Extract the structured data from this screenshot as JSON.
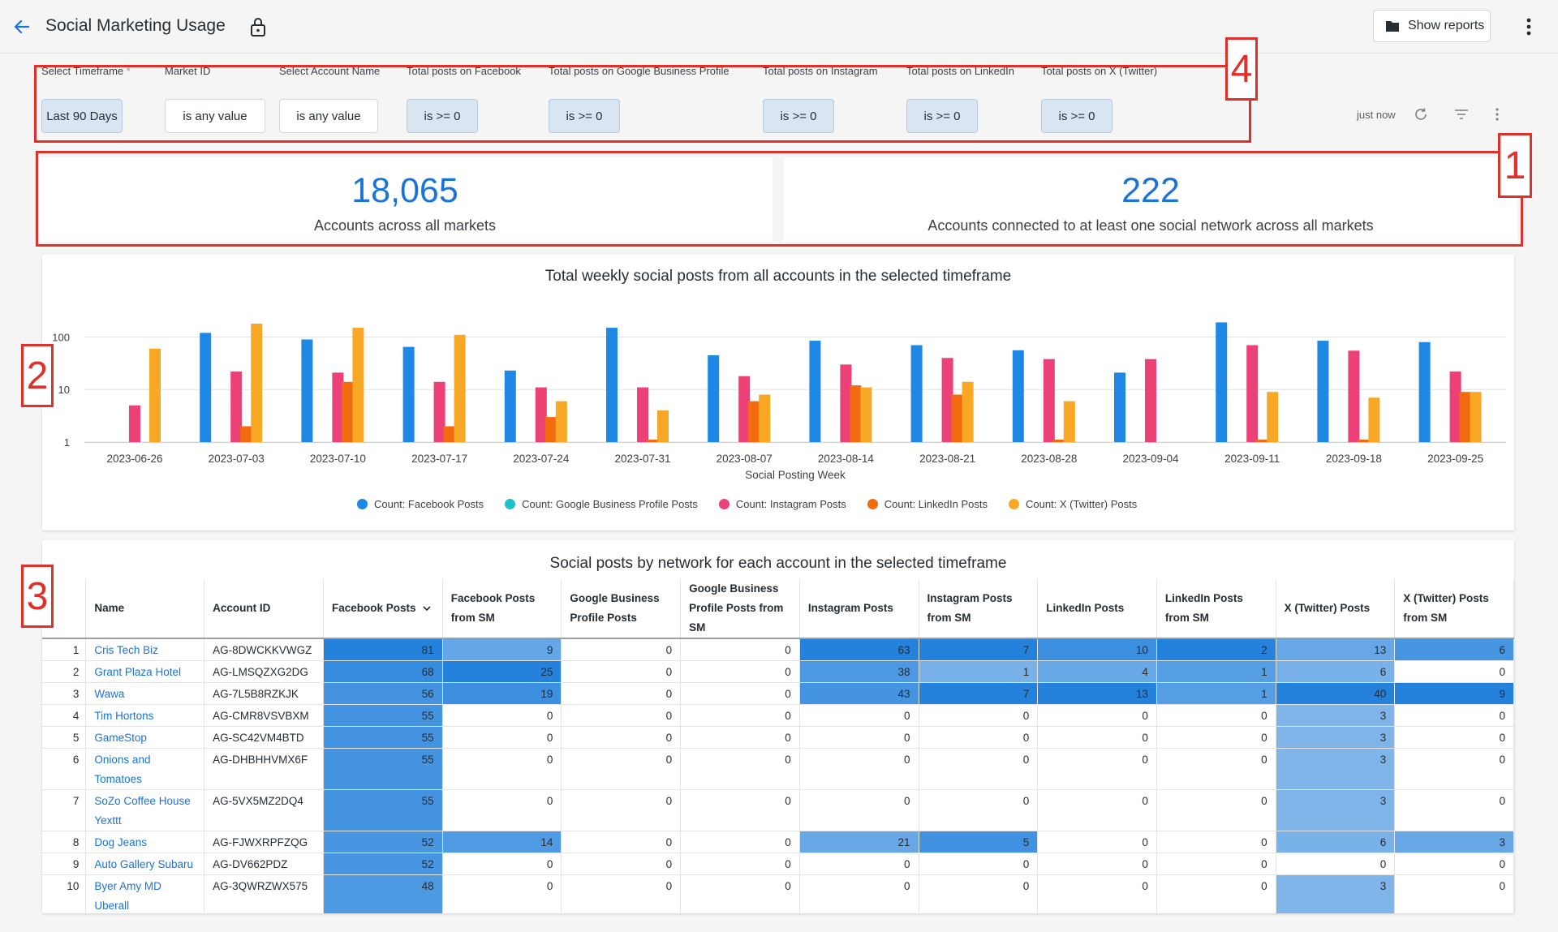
{
  "header": {
    "title": "Social Marketing Usage",
    "show_reports_label": "Show reports"
  },
  "filters": [
    {
      "label": "Select Timeframe",
      "required": "*",
      "value": "Last 90 Days"
    },
    {
      "label": "Market ID",
      "value": "is any value"
    },
    {
      "label": "Select Account Name",
      "value": "is any value"
    },
    {
      "label": "Total posts on Facebook",
      "value": "is >= 0"
    },
    {
      "label": "Total posts on Google Business Profile",
      "value": "is >= 0"
    },
    {
      "label": "Total posts on Instagram",
      "value": "is >= 0"
    },
    {
      "label": "Total posts on LinkedIn",
      "value": "is >= 0"
    },
    {
      "label": "Total posts on X (Twitter)",
      "value": "is >= 0"
    }
  ],
  "toolbar": {
    "refresh_status": "just now"
  },
  "annotations": [
    "1",
    "2",
    "3",
    "4"
  ],
  "kpis": [
    {
      "value": "18,065",
      "label": "Accounts across all markets"
    },
    {
      "value": "222",
      "label": "Accounts connected to at least one social network across all markets"
    }
  ],
  "chart_data": {
    "type": "bar",
    "title": "Total weekly social posts from all accounts in the selected timeframe",
    "xlabel": "Social Posting Week",
    "ylabel": "",
    "yscale": "log",
    "ylim": [
      1,
      200
    ],
    "yticks": [
      "1",
      "10",
      "100"
    ],
    "grid": true,
    "legend_position": "bottom",
    "categories": [
      "2023-06-26",
      "2023-07-03",
      "2023-07-10",
      "2023-07-17",
      "2023-07-24",
      "2023-07-31",
      "2023-08-07",
      "2023-08-14",
      "2023-08-21",
      "2023-08-28",
      "2023-09-04",
      "2023-09-11",
      "2023-09-18",
      "2023-09-25"
    ],
    "series": [
      {
        "name": "Count: Facebook Posts",
        "color": "#1f88e5",
        "values": [
          0,
          120,
          90,
          65,
          23,
          150,
          45,
          85,
          70,
          56,
          21,
          190,
          85,
          80
        ]
      },
      {
        "name": "Count: Google Business Profile Posts",
        "color": "#1fbfcf",
        "values": [
          0,
          0,
          0,
          0,
          0,
          0,
          0,
          0,
          0,
          0,
          0,
          0,
          0,
          0
        ]
      },
      {
        "name": "Count: Instagram Posts",
        "color": "#ec4176",
        "values": [
          5,
          22,
          21,
          14,
          11,
          11,
          18,
          30,
          40,
          38,
          38,
          70,
          55,
          22
        ]
      },
      {
        "name": "Count: LinkedIn Posts",
        "color": "#f26b0f",
        "values": [
          0,
          2,
          14,
          2,
          3,
          1,
          6,
          12,
          8,
          1,
          0,
          1,
          1,
          9
        ]
      },
      {
        "name": "Count: X (Twitter) Posts",
        "color": "#f9a825",
        "values": [
          60,
          180,
          150,
          110,
          6,
          4,
          8,
          11,
          14,
          6,
          0,
          9,
          7,
          9
        ]
      }
    ]
  },
  "table": {
    "title": "Social posts by network for each account in the selected timeframe",
    "columns": [
      {
        "label": "Name"
      },
      {
        "label": "Account ID"
      },
      {
        "label": "Facebook Posts"
      },
      {
        "label": "Facebook Posts from SM"
      },
      {
        "label": "Google Business Profile Posts"
      },
      {
        "label": "Google Business Profile Posts from SM"
      },
      {
        "label": "Instagram Posts"
      },
      {
        "label": "Instagram Posts from SM"
      },
      {
        "label": "LinkedIn Posts"
      },
      {
        "label": "LinkedIn Posts from SM"
      },
      {
        "label": "X (Twitter) Posts"
      },
      {
        "label": "X (Twitter) Posts from SM"
      }
    ],
    "rows": [
      {
        "index": "1",
        "name": "Cris Tech Biz",
        "account_id": "AG-8DWCKKVWGZ",
        "values": [
          81,
          9,
          0,
          0,
          63,
          7,
          10,
          2,
          13,
          6
        ]
      },
      {
        "index": "2",
        "name": "Grant Plaza Hotel",
        "account_id": "AG-LMSQZXG2DG",
        "values": [
          68,
          25,
          0,
          0,
          38,
          1,
          4,
          1,
          6,
          0
        ]
      },
      {
        "index": "3",
        "name": "Wawa",
        "account_id": "AG-7L5B8RZKJK",
        "values": [
          56,
          19,
          0,
          0,
          43,
          7,
          13,
          1,
          40,
          9
        ]
      },
      {
        "index": "4",
        "name": "Tim Hortons",
        "account_id": "AG-CMR8VSVBXM",
        "values": [
          55,
          0,
          0,
          0,
          0,
          0,
          0,
          0,
          3,
          0
        ]
      },
      {
        "index": "5",
        "name": "GameStop",
        "account_id": "AG-SC42VM4BTD",
        "values": [
          55,
          0,
          0,
          0,
          0,
          0,
          0,
          0,
          3,
          0
        ]
      },
      {
        "index": "6",
        "name": "Onions and Tomatoes",
        "account_id": "AG-DHBHHVMX6F",
        "values": [
          55,
          0,
          0,
          0,
          0,
          0,
          0,
          0,
          3,
          0
        ]
      },
      {
        "index": "7",
        "name": "SoZo Coffee House Yexttt",
        "account_id": "AG-5VX5MZ2DQ4",
        "values": [
          55,
          0,
          0,
          0,
          0,
          0,
          0,
          0,
          3,
          0
        ]
      },
      {
        "index": "8",
        "name": "Dog Jeans",
        "account_id": "AG-FJWXRPFZQG",
        "values": [
          52,
          14,
          0,
          0,
          21,
          5,
          0,
          0,
          6,
          3
        ]
      },
      {
        "index": "9",
        "name": "Auto Gallery Subaru",
        "account_id": "AG-DV662PDZ",
        "values": [
          52,
          0,
          0,
          0,
          0,
          0,
          0,
          0,
          0,
          0
        ]
      },
      {
        "index": "10",
        "name": "Byer Amy MD Uberall",
        "account_id": "AG-3QWRZWX575",
        "values": [
          48,
          0,
          0,
          0,
          0,
          0,
          0,
          0,
          3,
          0
        ]
      }
    ]
  }
}
